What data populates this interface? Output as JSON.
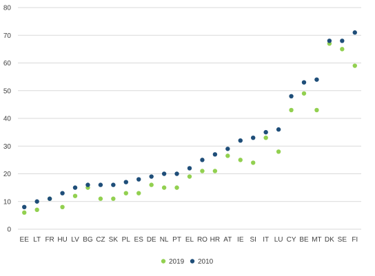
{
  "chart_data": {
    "type": "scatter",
    "title": "",
    "xlabel": "",
    "ylabel": "",
    "ylim": [
      0,
      80
    ],
    "yticks": [
      0,
      10,
      20,
      30,
      40,
      50,
      60,
      70,
      80
    ],
    "grid": "horizontal",
    "legend_position": "bottom",
    "categories": [
      "EE",
      "LT",
      "FR",
      "HU",
      "LV",
      "BG",
      "CZ",
      "SK",
      "PL",
      "ES",
      "DE",
      "NL",
      "PT",
      "EL",
      "RO",
      "HR",
      "AT",
      "IE",
      "SI",
      "IT",
      "LU",
      "CY",
      "BE",
      "MT",
      "DK",
      "SE",
      "FI"
    ],
    "series": [
      {
        "name": "2019",
        "color": "#92d050",
        "values": [
          6,
          7,
          11,
          8,
          12,
          15,
          11,
          11,
          13,
          13,
          16,
          15,
          15,
          19,
          21,
          21,
          26.5,
          25,
          24,
          33,
          28,
          43,
          49,
          43,
          67,
          65,
          59
        ]
      },
      {
        "name": "2010",
        "color": "#1f4e79",
        "values": [
          8,
          10,
          11,
          13,
          15,
          16,
          16,
          16,
          17,
          18,
          19,
          20,
          20,
          22,
          25,
          27,
          29,
          32,
          33,
          35,
          36,
          48,
          53,
          54,
          68,
          68,
          71
        ]
      }
    ]
  }
}
